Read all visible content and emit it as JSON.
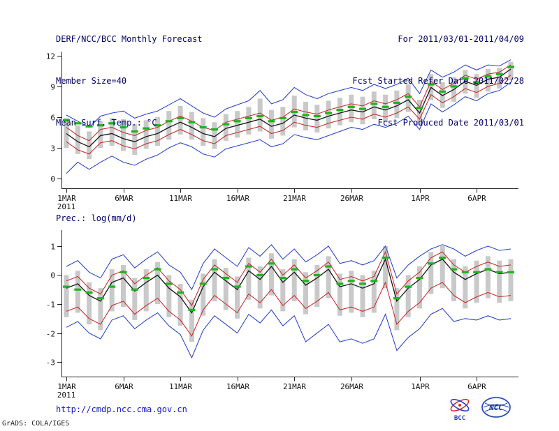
{
  "header": {
    "left": [
      "DERF/NCC/BCC Monthly Forecast",
      "Member Size=40",
      "Mean Surf. Temp.: °C"
    ],
    "right": [
      "For 2011/03/01-2011/04/09",
      "Fcst Started Refer Date 2011/02/28",
      "Fcst Produced Date 2011/03/01"
    ]
  },
  "footer": {
    "url": "http://cmdp.ncc.cma.gov.cn",
    "credit": "GrADS: COLA/IGES",
    "logos": [
      {
        "label": "BCC"
      },
      {
        "label": "NCC"
      }
    ]
  },
  "colors": {
    "header_text": "#000066",
    "axis_text": "#161616",
    "link": "#1414cc",
    "ensemble_spread": "#c9c9c9",
    "extreme_line": "#2840c8",
    "quartile_line": "#c82828",
    "mean_line": "#1a1a1a",
    "reference_dash": "#1eb41e"
  },
  "chart_data": [
    {
      "id": "temperature",
      "type": "line",
      "title": "Mean Surf. Temp.: °C",
      "xlabel": "",
      "ylabel": "°C",
      "grid": false,
      "legend": "none",
      "n": 40,
      "ylim": [
        -0.95,
        12.4
      ],
      "yticks": [
        0,
        3,
        6,
        9,
        12
      ],
      "x_year": "2011",
      "x_ticks": [
        {
          "label": "1MAR",
          "day": 0
        },
        {
          "label": "6MAR",
          "day": 5
        },
        {
          "label": "11MAR",
          "day": 10
        },
        {
          "label": "16MAR",
          "day": 15
        },
        {
          "label": "21MAR",
          "day": 20
        },
        {
          "label": "26MAR",
          "day": 25
        },
        {
          "label": "1APR",
          "day": 31
        },
        {
          "label": "6APR",
          "day": 36
        }
      ],
      "series": [
        {
          "name": "ensemble-spread-bar",
          "type": "range-bar",
          "color": "#c9c9c9",
          "low": [
            3.0,
            2.4,
            1.9,
            3.0,
            3.2,
            2.7,
            2.3,
            2.9,
            3.2,
            3.8,
            4.3,
            3.8,
            3.2,
            2.9,
            3.7,
            4.0,
            4.3,
            4.6,
            3.9,
            4.2,
            5.0,
            4.7,
            4.5,
            4.9,
            5.2,
            5.5,
            5.3,
            5.8,
            5.5,
            5.9,
            6.5,
            5.2,
            7.7,
            6.9,
            7.5,
            8.3,
            7.9,
            8.5,
            8.8,
            9.6
          ],
          "high": [
            5.9,
            5.2,
            4.6,
            5.6,
            5.9,
            5.8,
            5.3,
            5.7,
            6.0,
            6.6,
            7.1,
            6.5,
            5.9,
            5.5,
            6.3,
            6.6,
            7.0,
            7.8,
            6.7,
            7.0,
            8.1,
            7.5,
            7.2,
            7.6,
            7.9,
            8.2,
            8.0,
            8.5,
            8.2,
            8.6,
            9.2,
            7.7,
            10.2,
            9.4,
            9.9,
            10.6,
            10.2,
            10.7,
            10.8,
            11.4
          ]
        },
        {
          "name": "ensemble-max",
          "type": "line",
          "color": "#2840c8",
          "values": [
            6.2,
            5.6,
            5.0,
            6.1,
            6.4,
            6.6,
            5.9,
            6.3,
            6.6,
            7.2,
            7.8,
            7.1,
            6.4,
            6.0,
            6.8,
            7.2,
            7.6,
            8.6,
            7.3,
            7.7,
            8.9,
            8.2,
            7.8,
            8.3,
            8.6,
            8.9,
            8.6,
            9.2,
            8.8,
            9.2,
            9.8,
            8.3,
            10.6,
            9.9,
            10.4,
            11.1,
            10.6,
            11.1,
            11.0,
            11.6
          ]
        },
        {
          "name": "ensemble-min",
          "type": "line",
          "color": "#2840c8",
          "values": [
            0.5,
            1.6,
            0.9,
            1.6,
            2.2,
            1.6,
            1.3,
            1.9,
            2.3,
            3.0,
            3.5,
            3.1,
            2.4,
            2.1,
            2.9,
            3.2,
            3.5,
            3.8,
            3.1,
            3.4,
            4.3,
            4.0,
            3.8,
            4.2,
            4.6,
            5.0,
            4.8,
            5.3,
            5.0,
            5.4,
            6.1,
            4.8,
            7.3,
            6.5,
            7.2,
            8.0,
            7.6,
            8.3,
            8.6,
            9.4
          ]
        },
        {
          "name": "upper-quartile",
          "type": "line",
          "color": "#c82828",
          "values": [
            5.0,
            4.2,
            3.7,
            4.8,
            5.0,
            4.5,
            4.2,
            4.7,
            5.0,
            5.6,
            6.1,
            5.6,
            5.0,
            4.7,
            5.5,
            5.8,
            6.1,
            6.4,
            5.7,
            6.0,
            6.8,
            6.5,
            6.3,
            6.7,
            7.0,
            7.3,
            7.1,
            7.6,
            7.3,
            7.7,
            8.3,
            7.0,
            9.5,
            8.7,
            9.3,
            10.1,
            9.7,
            10.2,
            10.4,
            11.1
          ]
        },
        {
          "name": "lower-quartile",
          "type": "line",
          "color": "#c82828",
          "values": [
            3.6,
            2.8,
            2.4,
            3.5,
            3.7,
            3.2,
            2.9,
            3.4,
            3.7,
            4.3,
            4.8,
            4.3,
            3.7,
            3.4,
            4.2,
            4.5,
            4.8,
            5.1,
            4.4,
            4.7,
            5.5,
            5.2,
            5.0,
            5.4,
            5.7,
            6.0,
            5.8,
            6.3,
            6.0,
            6.4,
            7.0,
            5.8,
            8.2,
            7.4,
            8.0,
            8.8,
            8.4,
            9.0,
            9.3,
            10.1
          ]
        },
        {
          "name": "ensemble-mean",
          "type": "line",
          "color": "#1a1a1a",
          "width": 1.35,
          "values": [
            4.4,
            3.6,
            3.1,
            4.2,
            4.4,
            3.9,
            3.6,
            4.1,
            4.4,
            5.0,
            5.5,
            5.0,
            4.4,
            4.1,
            4.9,
            5.2,
            5.5,
            5.8,
            5.1,
            5.4,
            6.2,
            5.9,
            5.7,
            6.1,
            6.4,
            6.7,
            6.5,
            7.0,
            6.7,
            7.1,
            7.7,
            6.4,
            8.9,
            8.1,
            8.7,
            9.5,
            9.1,
            9.7,
            9.9,
            10.7
          ]
        },
        {
          "name": "climatology-dash",
          "type": "dash",
          "color": "#1eb41e",
          "values": [
            5.7,
            5.4,
            5.1,
            5.2,
            5.4,
            5.0,
            4.6,
            4.9,
            5.2,
            5.6,
            5.9,
            5.5,
            5.0,
            4.8,
            5.3,
            5.6,
            5.9,
            6.1,
            5.6,
            5.9,
            6.5,
            6.2,
            6.1,
            6.4,
            6.7,
            7.0,
            6.8,
            7.3,
            7.0,
            7.4,
            8.0,
            6.9,
            9.2,
            8.5,
            9.0,
            9.8,
            9.4,
            10.0,
            10.2,
            10.9
          ]
        }
      ]
    },
    {
      "id": "precipitation",
      "type": "line",
      "title": "Prec.: log(mm/d)",
      "xlabel": "",
      "ylabel": "log(mm/d)",
      "grid": false,
      "legend": "none",
      "n": 40,
      "ylim": [
        -3.5,
        1.55
      ],
      "yticks": [
        -3,
        -2,
        -1,
        0,
        1
      ],
      "x_year": "2011",
      "x_ticks": [
        {
          "label": "1MAR",
          "day": 0
        },
        {
          "label": "6MAR",
          "day": 5
        },
        {
          "label": "11MAR",
          "day": 10
        },
        {
          "label": "16MAR",
          "day": 15
        },
        {
          "label": "21MAR",
          "day": 20
        },
        {
          "label": "26MAR",
          "day": 25
        },
        {
          "label": "1APR",
          "day": 31
        },
        {
          "label": "6APR",
          "day": 36
        }
      ],
      "series": [
        {
          "name": "ensemble-spread-bar",
          "type": "range-bar",
          "color": "#c9c9c9",
          "low": [
            -1.45,
            -1.3,
            -1.7,
            -1.9,
            -1.25,
            -1.1,
            -1.55,
            -1.25,
            -1.0,
            -1.45,
            -1.75,
            -2.3,
            -1.4,
            -0.9,
            -1.2,
            -1.5,
            -0.85,
            -1.15,
            -0.7,
            -1.25,
            -0.9,
            -1.35,
            -1.1,
            -0.8,
            -1.4,
            -1.3,
            -1.45,
            -1.3,
            -0.45,
            -1.9,
            -1.45,
            -1.15,
            -0.65,
            -0.45,
            -0.9,
            -1.15,
            -0.95,
            -0.8,
            -0.95,
            -0.9
          ],
          "high": [
            0.0,
            0.15,
            -0.25,
            -0.45,
            0.2,
            0.35,
            -0.1,
            0.2,
            0.45,
            0.0,
            -0.3,
            -0.85,
            0.05,
            0.55,
            0.25,
            -0.05,
            0.6,
            0.3,
            0.75,
            0.2,
            0.55,
            0.1,
            0.35,
            0.65,
            0.05,
            0.15,
            0.0,
            0.15,
            1.0,
            -0.45,
            0.0,
            0.3,
            0.8,
            1.0,
            0.55,
            0.3,
            0.5,
            0.65,
            0.5,
            0.55
          ]
        },
        {
          "name": "ensemble-max",
          "type": "line",
          "color": "#2840c8",
          "values": [
            0.3,
            0.5,
            0.1,
            -0.1,
            0.55,
            0.7,
            0.25,
            0.55,
            0.8,
            0.35,
            0.1,
            -0.5,
            0.4,
            0.9,
            0.6,
            0.3,
            0.95,
            0.65,
            1.05,
            0.55,
            0.9,
            0.45,
            0.7,
            1.0,
            0.4,
            0.5,
            0.35,
            0.5,
            1.0,
            -0.1,
            0.35,
            0.65,
            0.9,
            1.05,
            0.9,
            0.65,
            0.85,
            1.0,
            0.85,
            0.9
          ]
        },
        {
          "name": "ensemble-min",
          "type": "line",
          "color": "#2840c8",
          "values": [
            -1.8,
            -1.6,
            -2.0,
            -2.2,
            -1.55,
            -1.4,
            -1.85,
            -1.55,
            -1.3,
            -1.75,
            -2.05,
            -2.85,
            -1.9,
            -1.4,
            -1.7,
            -2.0,
            -1.35,
            -1.65,
            -1.2,
            -1.75,
            -1.4,
            -2.3,
            -2.0,
            -1.7,
            -2.3,
            -2.2,
            -2.35,
            -2.2,
            -1.35,
            -2.6,
            -2.15,
            -1.85,
            -1.35,
            -1.15,
            -1.6,
            -1.5,
            -1.55,
            -1.4,
            -1.55,
            -1.5
          ]
        },
        {
          "name": "upper-quartile",
          "type": "line",
          "color": "#c82828",
          "values": [
            -0.2,
            -0.05,
            -0.45,
            -0.65,
            0.0,
            0.15,
            -0.3,
            0.0,
            0.25,
            -0.2,
            -0.5,
            -1.05,
            -0.15,
            0.35,
            0.05,
            -0.25,
            0.4,
            0.1,
            0.55,
            0.0,
            0.35,
            -0.1,
            0.15,
            0.45,
            -0.15,
            -0.05,
            -0.2,
            -0.05,
            0.8,
            -0.65,
            -0.2,
            0.1,
            0.6,
            0.8,
            0.35,
            0.1,
            0.3,
            0.45,
            0.3,
            0.35
          ]
        },
        {
          "name": "lower-quartile",
          "type": "line",
          "color": "#c82828",
          "values": [
            -1.25,
            -1.1,
            -1.5,
            -1.7,
            -1.05,
            -0.9,
            -1.35,
            -1.05,
            -0.8,
            -1.25,
            -1.55,
            -2.1,
            -1.2,
            -0.7,
            -1.0,
            -1.3,
            -0.65,
            -0.95,
            -0.5,
            -1.05,
            -0.7,
            -1.15,
            -0.9,
            -0.6,
            -1.2,
            -1.1,
            -1.25,
            -1.1,
            -0.25,
            -1.7,
            -1.25,
            -0.95,
            -0.45,
            -0.25,
            -0.7,
            -0.95,
            -0.75,
            -0.6,
            -0.75,
            -0.7
          ]
        },
        {
          "name": "ensemble-mean",
          "type": "line",
          "color": "#1a1a1a",
          "width": 1.35,
          "values": [
            -0.45,
            -0.3,
            -0.7,
            -0.9,
            -0.25,
            -0.1,
            -0.55,
            -0.25,
            0.0,
            -0.45,
            -0.75,
            -1.3,
            -0.4,
            0.1,
            -0.2,
            -0.5,
            0.15,
            -0.15,
            0.3,
            -0.25,
            0.1,
            -0.35,
            -0.1,
            0.2,
            -0.4,
            -0.3,
            -0.45,
            -0.3,
            0.55,
            -0.9,
            -0.45,
            -0.15,
            0.35,
            0.55,
            0.1,
            -0.15,
            0.05,
            0.2,
            0.05,
            0.1
          ]
        },
        {
          "name": "climatology-dash",
          "type": "dash",
          "color": "#1eb41e",
          "values": [
            -0.4,
            -0.5,
            -0.6,
            -0.8,
            -0.4,
            0.1,
            -0.5,
            -0.1,
            0.2,
            -0.3,
            -0.6,
            -1.2,
            -0.3,
            0.2,
            -0.1,
            -0.4,
            0.3,
            0.0,
            0.4,
            -0.1,
            0.2,
            -0.2,
            0.0,
            0.3,
            -0.3,
            -0.2,
            -0.3,
            -0.2,
            0.6,
            -0.8,
            -0.4,
            -0.1,
            0.4,
            0.6,
            0.2,
            0.1,
            0.1,
            0.2,
            0.1,
            0.1
          ]
        }
      ]
    }
  ]
}
